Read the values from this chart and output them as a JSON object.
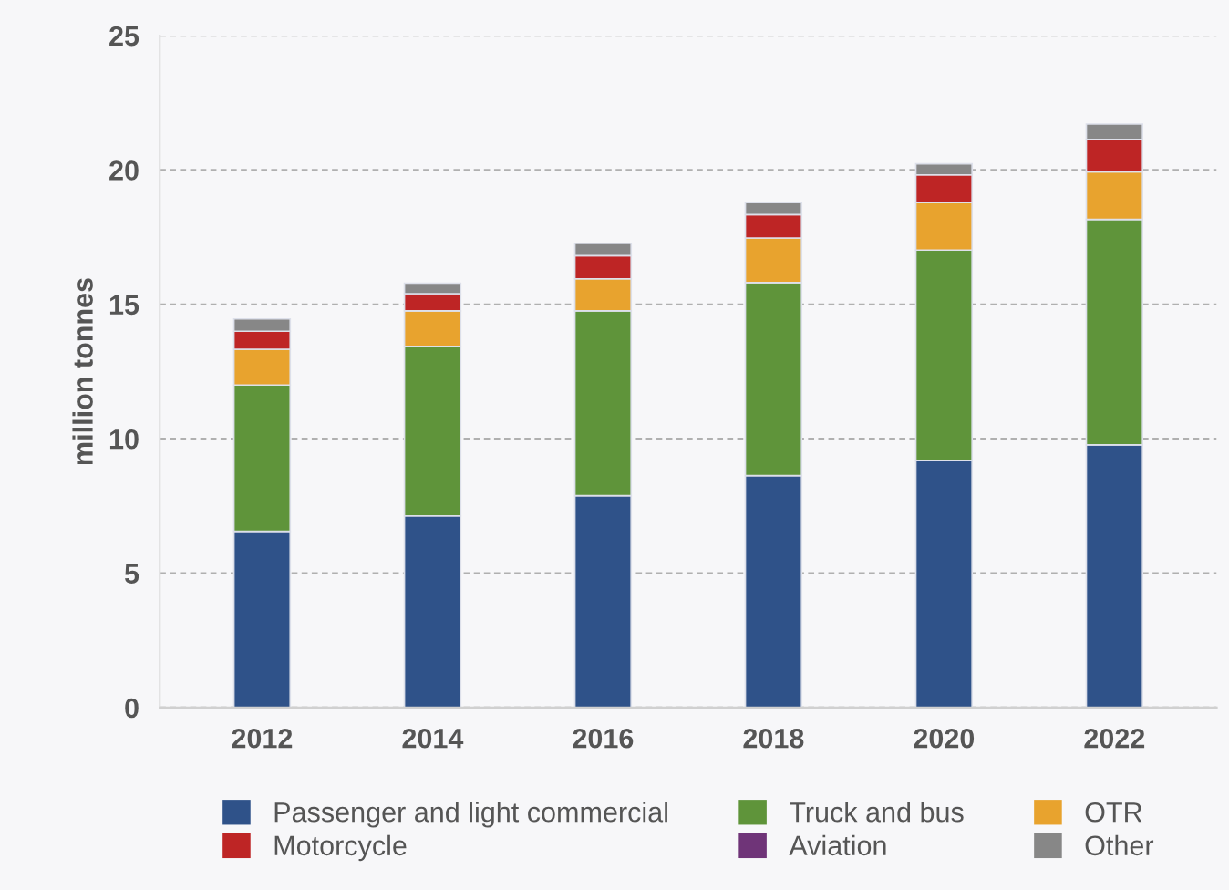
{
  "chart_data": {
    "type": "bar",
    "stacked": true,
    "ylabel": "million tonnes",
    "categories": [
      "2012",
      "2014",
      "2016",
      "2018",
      "2020",
      "2022"
    ],
    "series": [
      {
        "name": "Passenger and light commercial",
        "color": "#2f5289",
        "values": [
          6.56,
          7.13,
          7.88,
          8.63,
          9.2,
          9.77
        ]
      },
      {
        "name": "Truck and bus",
        "color": "#5f943a",
        "values": [
          5.44,
          6.31,
          6.88,
          7.18,
          7.82,
          8.39
        ]
      },
      {
        "name": "OTR",
        "color": "#e8a32e",
        "values": [
          1.33,
          1.32,
          1.19,
          1.66,
          1.77,
          1.77
        ]
      },
      {
        "name": "Motorcycle",
        "color": "#be2525",
        "values": [
          0.67,
          0.64,
          0.86,
          0.87,
          1.03,
          1.21
        ]
      },
      {
        "name": "Aviation",
        "color": "#6f3478",
        "values": [
          null,
          null,
          null,
          null,
          null,
          null
        ]
      },
      {
        "name": "Other",
        "color": "#878787",
        "values": [
          0.46,
          0.39,
          0.46,
          0.45,
          0.41,
          0.57
        ]
      }
    ],
    "ylim": [
      0,
      25
    ],
    "yticks": [
      0,
      5,
      10,
      15,
      20,
      25
    ],
    "grid": "y",
    "legend": "bottom"
  }
}
